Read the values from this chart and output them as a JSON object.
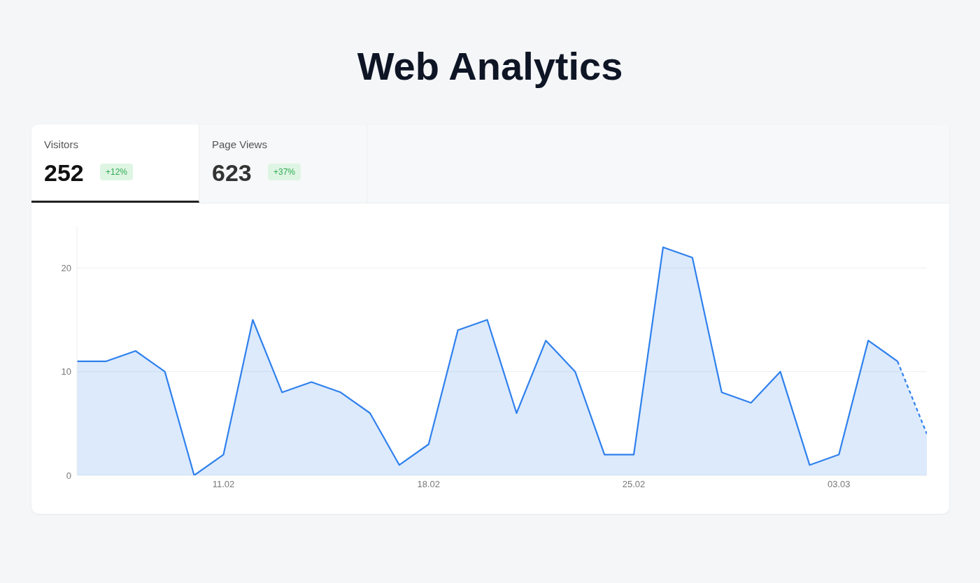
{
  "chart_data": {
    "type": "area",
    "title": "Web Analytics",
    "annotations": [
      "Visitors",
      "252",
      "+12%",
      "Page Views",
      "623",
      "+37%"
    ],
    "categories": [
      null,
      null,
      null,
      null,
      null,
      "11.02",
      null,
      null,
      null,
      null,
      null,
      null,
      "18.02",
      null,
      null,
      null,
      null,
      null,
      null,
      "25.02",
      null,
      null,
      null,
      null,
      null,
      null,
      "03.03",
      null,
      null,
      null
    ],
    "series": [
      {
        "color": "#2f80ed",
        "line_style": "solid",
        "values": [
          11,
          11,
          12,
          10,
          0,
          2,
          15,
          8,
          9,
          8,
          6,
          1,
          3,
          14,
          15,
          6,
          13,
          10,
          2,
          2,
          22,
          21,
          8,
          7,
          10,
          1,
          2,
          13,
          11,
          null
        ]
      },
      {
        "color": "#2f80ed",
        "line_style": "dashed",
        "values": [
          null,
          null,
          null,
          null,
          null,
          null,
          null,
          null,
          null,
          null,
          null,
          null,
          null,
          null,
          null,
          null,
          null,
          null,
          null,
          null,
          null,
          null,
          null,
          null,
          null,
          null,
          null,
          null,
          11,
          4
        ]
      }
    ],
    "ylim": [
      0,
      24
    ],
    "yticks": [
      0,
      10,
      20
    ],
    "grid": "y"
  }
}
